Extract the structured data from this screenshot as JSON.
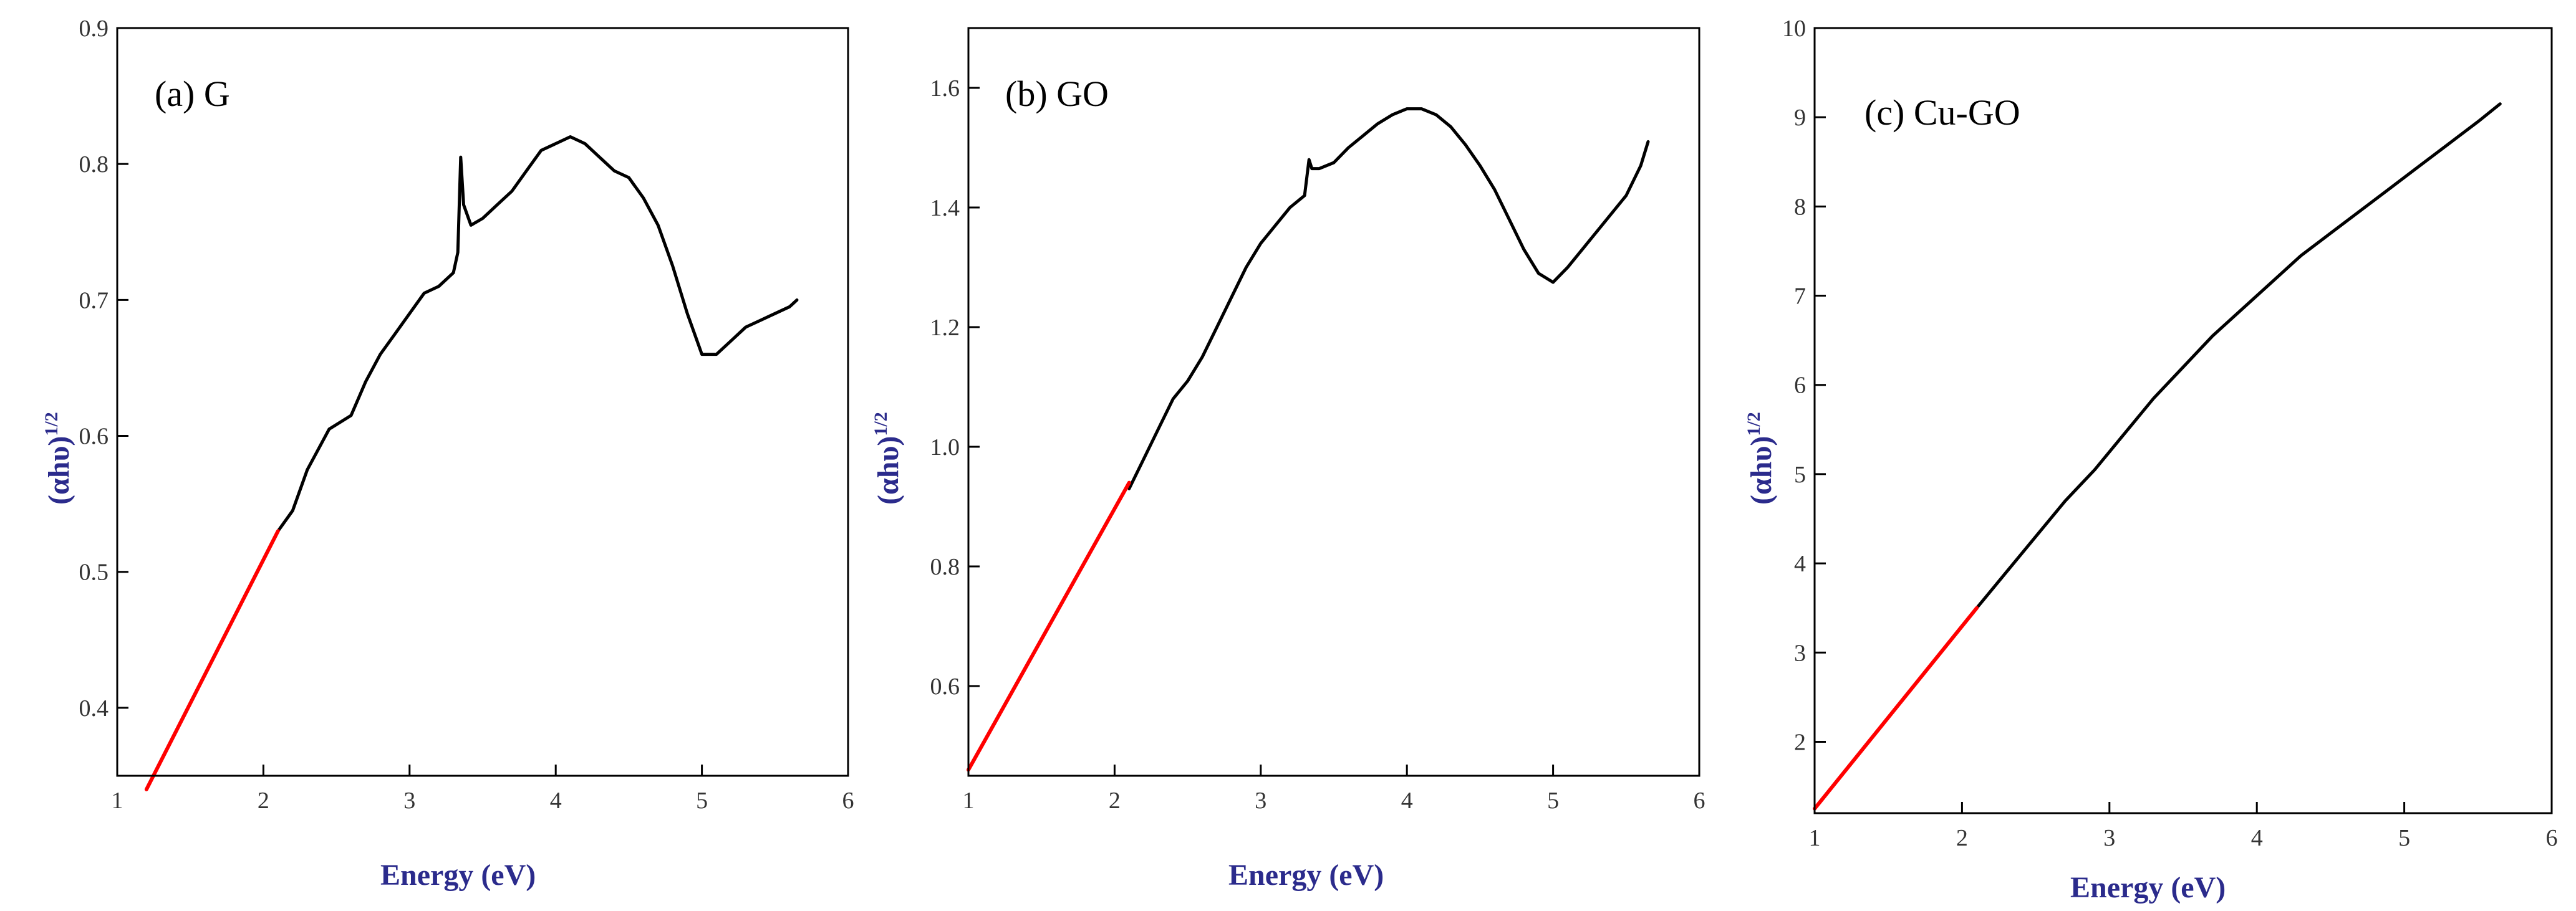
{
  "colors": {
    "curve": "#000000",
    "fit": "#ff0000",
    "axis_title": "#2b2b8c",
    "frame": "#000000"
  },
  "chart_data": [
    {
      "type": "line",
      "panel_label": "(a) G",
      "xlabel": "Energy (eV)",
      "ylabel": "(αhυ)",
      "ylabel_exponent": "1/2",
      "xlim": [
        1,
        6
      ],
      "ylim": [
        0.35,
        0.9
      ],
      "xticks": [
        1,
        2,
        3,
        4,
        5,
        6
      ],
      "yticks": [
        0.4,
        0.5,
        0.6,
        0.7,
        0.8,
        0.9
      ],
      "ytick_labels": [
        "0.4",
        "0.5",
        "0.6",
        "0.7",
        "0.8",
        "0.9"
      ],
      "series": [
        {
          "name": "spectrum",
          "x": [
            2.1,
            2.2,
            2.3,
            2.45,
            2.6,
            2.7,
            2.8,
            2.9,
            3.0,
            3.1,
            3.2,
            3.3,
            3.33,
            3.35,
            3.37,
            3.42,
            3.5,
            3.6,
            3.7,
            3.8,
            3.9,
            4.0,
            4.1,
            4.2,
            4.3,
            4.4,
            4.5,
            4.6,
            4.7,
            4.8,
            4.9,
            5.0,
            5.1,
            5.2,
            5.3,
            5.4,
            5.5,
            5.6,
            5.65
          ],
          "y": [
            0.53,
            0.545,
            0.575,
            0.605,
            0.615,
            0.64,
            0.66,
            0.675,
            0.69,
            0.705,
            0.71,
            0.72,
            0.735,
            0.805,
            0.77,
            0.755,
            0.76,
            0.77,
            0.78,
            0.795,
            0.81,
            0.815,
            0.82,
            0.815,
            0.805,
            0.795,
            0.79,
            0.775,
            0.755,
            0.725,
            0.69,
            0.66,
            0.66,
            0.67,
            0.68,
            0.685,
            0.69,
            0.695,
            0.7
          ]
        },
        {
          "name": "linear fit",
          "x": [
            1.2,
            2.1
          ],
          "y": [
            0.34,
            0.53
          ]
        }
      ]
    },
    {
      "type": "line",
      "panel_label": "(b) GO",
      "xlabel": "Energy (eV)",
      "ylabel": "(αhυ)",
      "ylabel_exponent": "1/2",
      "xlim": [
        1,
        6
      ],
      "ylim": [
        0.45,
        1.7
      ],
      "xticks": [
        1,
        2,
        3,
        4,
        5,
        6
      ],
      "yticks": [
        0.6,
        0.8,
        1.0,
        1.2,
        1.4,
        1.6
      ],
      "ytick_labels": [
        "0.6",
        "0.8",
        "1.0",
        "1.2",
        "1.4",
        "1.6"
      ],
      "series": [
        {
          "name": "spectrum",
          "x": [
            2.1,
            2.2,
            2.3,
            2.4,
            2.5,
            2.6,
            2.7,
            2.8,
            2.9,
            3.0,
            3.1,
            3.2,
            3.3,
            3.33,
            3.35,
            3.4,
            3.5,
            3.6,
            3.7,
            3.8,
            3.9,
            4.0,
            4.1,
            4.2,
            4.3,
            4.4,
            4.5,
            4.6,
            4.7,
            4.8,
            4.9,
            5.0,
            5.1,
            5.2,
            5.3,
            5.4,
            5.5,
            5.6,
            5.65
          ],
          "y": [
            0.93,
            0.98,
            1.03,
            1.08,
            1.11,
            1.15,
            1.2,
            1.25,
            1.3,
            1.34,
            1.37,
            1.4,
            1.42,
            1.48,
            1.465,
            1.465,
            1.475,
            1.5,
            1.52,
            1.54,
            1.555,
            1.565,
            1.565,
            1.555,
            1.535,
            1.505,
            1.47,
            1.43,
            1.38,
            1.33,
            1.29,
            1.275,
            1.3,
            1.33,
            1.36,
            1.39,
            1.42,
            1.47,
            1.51
          ]
        },
        {
          "name": "linear fit",
          "x": [
            1.0,
            2.1
          ],
          "y": [
            0.46,
            0.94
          ]
        }
      ]
    },
    {
      "type": "line",
      "panel_label": "(c) Cu-GO",
      "xlabel": "Energy (eV)",
      "ylabel": "(αhυ)",
      "ylabel_exponent": "1/2",
      "xlim": [
        1,
        6
      ],
      "ylim": [
        1.2,
        10
      ],
      "xticks": [
        1,
        2,
        3,
        4,
        5,
        6
      ],
      "yticks": [
        2,
        3,
        4,
        5,
        6,
        7,
        8,
        9,
        10
      ],
      "ytick_labels": [
        "2",
        "3",
        "4",
        "5",
        "6",
        "7",
        "8",
        "9",
        "10"
      ],
      "series": [
        {
          "name": "spectrum",
          "x": [
            2.1,
            2.3,
            2.5,
            2.7,
            2.9,
            3.1,
            3.3,
            3.5,
            3.7,
            3.9,
            4.1,
            4.3,
            4.5,
            4.7,
            4.9,
            5.1,
            5.3,
            5.5,
            5.65
          ],
          "y": [
            3.5,
            3.9,
            4.3,
            4.7,
            5.05,
            5.45,
            5.85,
            6.2,
            6.55,
            6.85,
            7.15,
            7.45,
            7.7,
            7.95,
            8.2,
            8.45,
            8.7,
            8.95,
            9.15
          ]
        },
        {
          "name": "linear fit",
          "x": [
            1.0,
            2.1
          ],
          "y": [
            1.25,
            3.5
          ]
        }
      ]
    }
  ]
}
